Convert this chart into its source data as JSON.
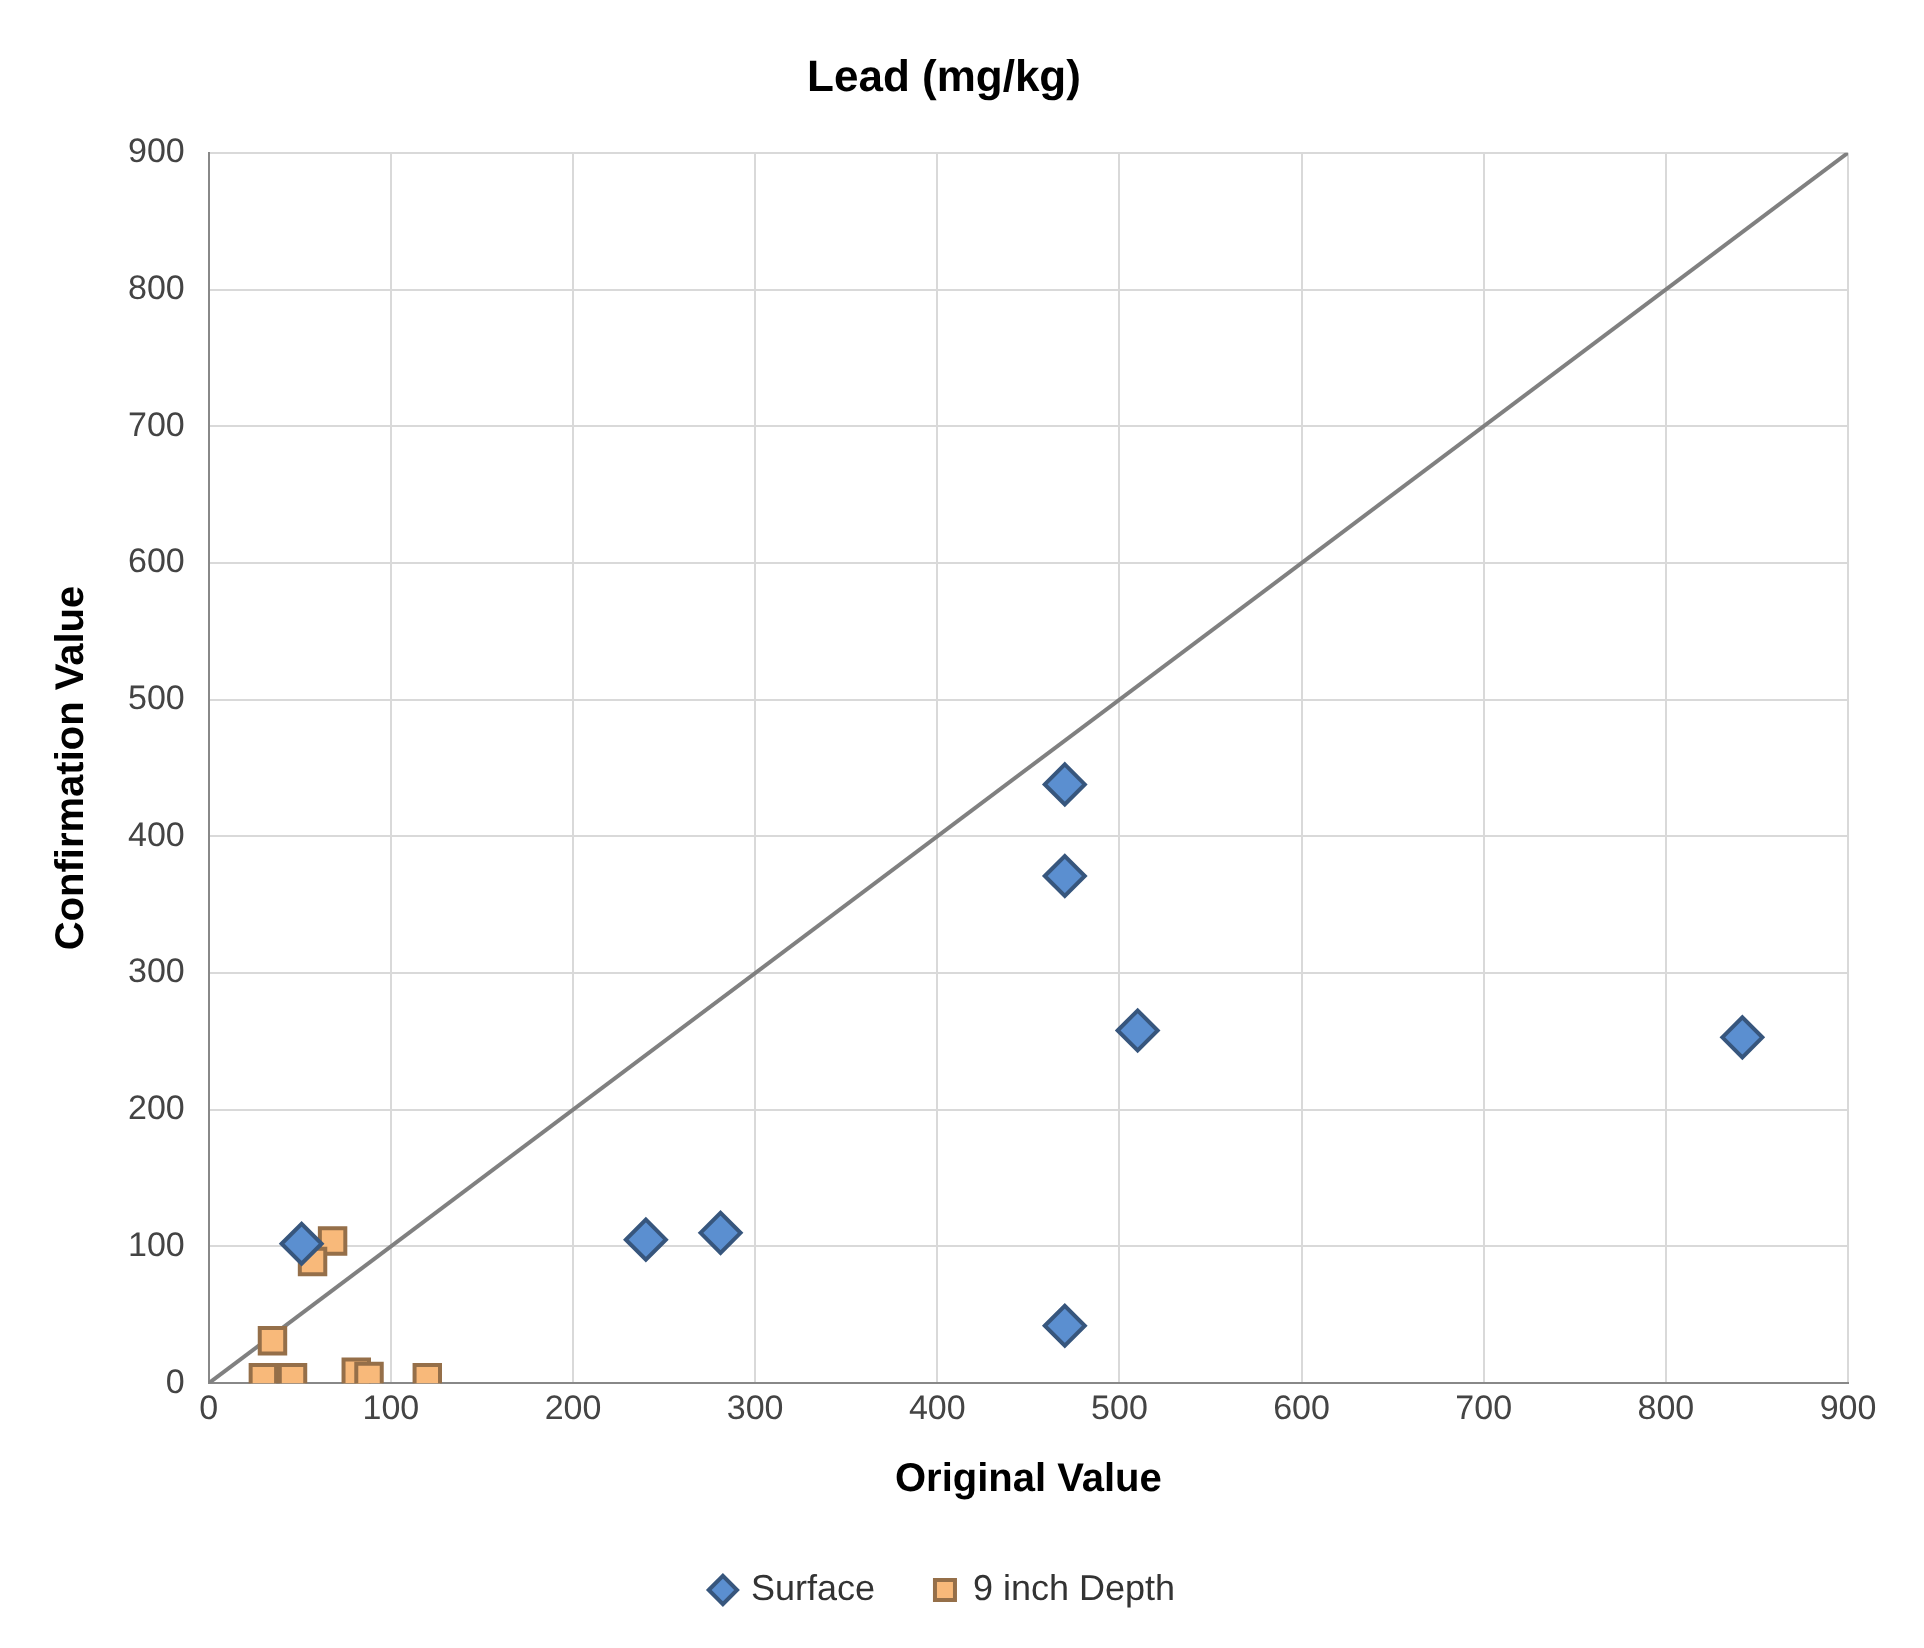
{
  "chart_data": {
    "type": "scatter",
    "title": "Lead (mg/kg)",
    "xlabel": "Original Value",
    "ylabel": "Confirmation Value",
    "xlim": [
      0,
      900
    ],
    "xticks": [
      0,
      100,
      200,
      300,
      400,
      500,
      600,
      700,
      800,
      900
    ],
    "ylim": [
      0,
      900
    ],
    "yticks": [
      0,
      100,
      200,
      300,
      400,
      500,
      600,
      700,
      800,
      900
    ],
    "grid": true,
    "legend": "bottom",
    "series": [
      {
        "type": "line",
        "color": "#808080",
        "marker": "none",
        "x": [
          0,
          900
        ],
        "values": [
          0,
          900
        ]
      },
      {
        "name": "Surface",
        "color": "#5b8fd0",
        "marker": "diamond",
        "x": [
          470,
          470,
          510,
          842,
          240,
          281,
          470,
          51
        ],
        "values": [
          438,
          371,
          258,
          253,
          105,
          110,
          42,
          102
        ]
      },
      {
        "name": "9 inch Depth",
        "color": "#f8b97a",
        "marker": "square",
        "x": [
          68,
          57,
          35,
          30,
          46,
          81,
          88,
          120
        ],
        "values": [
          104,
          89,
          31,
          4,
          4,
          8,
          5,
          4
        ]
      }
    ]
  }
}
